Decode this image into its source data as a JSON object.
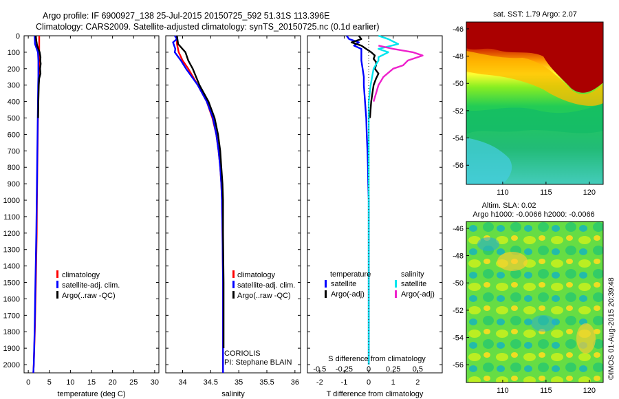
{
  "header": {
    "title_line1": "Argo profile: IF 6900927_138 25-Jul-2015 20150725_592 51.31S 113.396E",
    "title_line2": "Climatology: CARS2009. Satellite-adjusted climatology: synTS_20150725.nc (0.1d earlier)"
  },
  "depth_ticks": [
    0,
    100,
    200,
    300,
    400,
    500,
    600,
    700,
    800,
    900,
    1000,
    1100,
    1200,
    1300,
    1400,
    1500,
    1600,
    1700,
    1800,
    1900,
    2000
  ],
  "colors": {
    "climatology": "#ff0000",
    "satellite": "#0000ff",
    "argo": "#000000",
    "sal_satellite": "#00e5ee",
    "sal_argo": "#ee22cc"
  },
  "chart_data": [
    {
      "type": "line",
      "id": "temperature",
      "xlabel": "temperature (deg C)",
      "xlim": [
        -1,
        31
      ],
      "ylim": [
        2050,
        0
      ],
      "xticks": [
        0,
        5,
        10,
        15,
        20,
        25,
        30
      ],
      "legend": [
        "climatology",
        "satellite-adj. clim.",
        "Argo(..raw -QC)"
      ],
      "series": [
        {
          "name": "climatology",
          "color": "climatology",
          "depth": [
            0,
            20,
            50,
            80,
            100,
            150,
            200,
            250,
            300,
            400,
            600,
            800,
            1000,
            1200,
            1500,
            1800,
            2000,
            2050
          ],
          "values": [
            2.6,
            2.6,
            2.6,
            2.6,
            2.6,
            2.7,
            2.6,
            2.5,
            2.4,
            2.35,
            2.25,
            2.15,
            2.05,
            2.0,
            1.8,
            1.55,
            1.3,
            1.2
          ]
        },
        {
          "name": "satellite-adj. clim.",
          "color": "satellite",
          "depth": [
            0,
            20,
            50,
            80,
            100,
            150,
            200,
            250,
            300,
            400,
            600,
            800,
            1000,
            1200,
            1500,
            1800,
            2000,
            2050
          ],
          "values": [
            1.5,
            1.55,
            1.6,
            2.0,
            2.3,
            2.4,
            2.4,
            2.4,
            2.35,
            2.3,
            2.2,
            2.1,
            2.0,
            1.9,
            1.7,
            1.5,
            1.3,
            1.2
          ]
        },
        {
          "name": "Argo(..raw -QC)",
          "color": "argo",
          "depth": [
            0,
            30,
            60,
            80,
            100,
            130,
            150,
            170,
            200,
            230,
            260,
            300,
            400,
            500
          ],
          "values": [
            1.8,
            1.9,
            2.1,
            2.4,
            2.7,
            2.9,
            2.85,
            2.95,
            2.8,
            2.9,
            2.6,
            2.5,
            2.4,
            2.35
          ]
        }
      ]
    },
    {
      "type": "line",
      "id": "salinity",
      "xlabel": "salinity",
      "xlim": [
        33.7,
        36.1
      ],
      "ylim": [
        2050,
        0
      ],
      "xticks": [
        34,
        34.5,
        35,
        35.5,
        36
      ],
      "legend": [
        "climatology",
        "satellite-adj. clim.",
        "Argo(..raw -QC)"
      ],
      "annotation": [
        "CORIOLIS",
        "PI: Stephane BLAIN"
      ],
      "series": [
        {
          "name": "climatology",
          "color": "climatology",
          "depth": [
            0,
            50,
            100,
            150,
            200,
            300,
            400,
            500,
            600,
            700,
            800,
            900,
            1000,
            1200,
            1500,
            1800,
            2000,
            2050
          ],
          "values": [
            33.9,
            33.9,
            33.93,
            34.0,
            34.1,
            34.27,
            34.43,
            34.53,
            34.6,
            34.64,
            34.67,
            34.69,
            34.7,
            34.71,
            34.72,
            34.72,
            34.72,
            34.72
          ]
        },
        {
          "name": "satellite-adj. clim.",
          "color": "satellite",
          "depth": [
            0,
            20,
            40,
            60,
            80,
            100,
            150,
            200,
            300,
            400,
            500,
            600,
            700,
            800,
            900,
            1000,
            1200,
            1500,
            1800,
            2000,
            2050
          ],
          "values": [
            33.86,
            33.9,
            33.83,
            33.85,
            33.87,
            33.86,
            33.97,
            34.06,
            34.27,
            34.43,
            34.54,
            34.6,
            34.64,
            34.67,
            34.69,
            34.7,
            34.71,
            34.72,
            34.72,
            34.72,
            34.72
          ]
        },
        {
          "name": "Argo(..raw -QC)",
          "color": "argo",
          "depth": [
            0,
            50,
            100,
            150,
            200,
            300,
            400,
            500,
            600,
            700,
            800,
            900,
            1000,
            1200,
            1500,
            1800,
            1900
          ],
          "values": [
            33.9,
            33.92,
            34.05,
            34.1,
            34.18,
            34.3,
            34.46,
            34.57,
            34.63,
            34.67,
            34.69,
            34.71,
            34.72,
            34.72,
            34.73,
            34.73,
            34.73
          ]
        }
      ]
    },
    {
      "type": "line",
      "id": "difference",
      "xlabel": "T difference from climatology",
      "xlabel_top": "S difference from climatology",
      "xlim": [
        -2.5,
        3
      ],
      "ylim": [
        2050,
        0
      ],
      "xticks": [
        -2,
        -1,
        0,
        1,
        2
      ],
      "xticks_top": [
        -0.5,
        -0.25,
        0,
        0.25,
        0.5
      ],
      "legend_groups": {
        "temperature": [
          "satellite",
          "Argo(-adj)"
        ],
        "salinity": [
          "satellite",
          "Argo(-adj)"
        ]
      },
      "series": [
        {
          "name": "temperature satellite",
          "color": "satellite",
          "depth": [
            0,
            20,
            40,
            60,
            80,
            100,
            150,
            200,
            250,
            300,
            400,
            500,
            600,
            700,
            800,
            900,
            1000,
            1200,
            1500,
            1800,
            2000
          ],
          "values": [
            -0.9,
            -0.8,
            -0.4,
            -0.6,
            -0.3,
            -0.3,
            -0.3,
            -0.25,
            -0.2,
            -0.2,
            -0.15,
            -0.1,
            -0.08,
            -0.05,
            -0.03,
            -0.02,
            0,
            0,
            0,
            0,
            0
          ]
        },
        {
          "name": "temperature Argo(-adj)",
          "color": "argo",
          "depth": [
            0,
            20,
            40,
            60,
            80,
            100,
            120,
            140,
            160,
            180,
            200,
            230,
            260,
            300,
            400,
            500
          ],
          "values": [
            -0.4,
            -0.3,
            -0.7,
            -0.3,
            -0.1,
            0.1,
            0.25,
            0.2,
            0.3,
            0.3,
            0.25,
            0.4,
            0.3,
            0.2,
            0.1,
            0.05
          ]
        },
        {
          "name": "salinity satellite",
          "color": "sal_satellite",
          "depth": [
            0,
            20,
            50,
            80,
            100,
            130,
            150,
            200,
            300,
            400,
            600,
            800,
            1000,
            1500,
            2000
          ],
          "values": [
            0.1,
            0.2,
            0.3,
            0.1,
            0.2,
            0.1,
            0.1,
            0.05,
            0.02,
            0,
            0,
            0,
            0,
            0,
            0
          ]
        },
        {
          "name": "salinity Argo(-adj)",
          "color": "sal_argo",
          "depth": [
            60,
            80,
            100,
            120,
            150,
            180,
            200,
            250,
            300,
            400
          ],
          "values": [
            0.1,
            0.25,
            0.45,
            0.55,
            0.4,
            0.35,
            0.25,
            0.15,
            0.1,
            0.05
          ]
        }
      ]
    },
    {
      "type": "heatmap",
      "id": "sst_map",
      "title": "sat. SST: 1.79 Argo: 2.07",
      "xticks": [
        110,
        115,
        120
      ],
      "yticks": [
        -46,
        -48,
        -50,
        -52,
        -54,
        -56
      ]
    },
    {
      "type": "heatmap",
      "id": "sla_map",
      "title": "Altim. SLA: 0.02",
      "subtitle": "Argo h1000: -0.0066 h2000: -0.0066",
      "xticks": [
        110,
        115,
        120
      ],
      "yticks": [
        -46,
        -48,
        -50,
        -52,
        -54,
        -56
      ]
    }
  ],
  "footer_stamp": "©IMOS 01-Aug-2015 20:39:48"
}
